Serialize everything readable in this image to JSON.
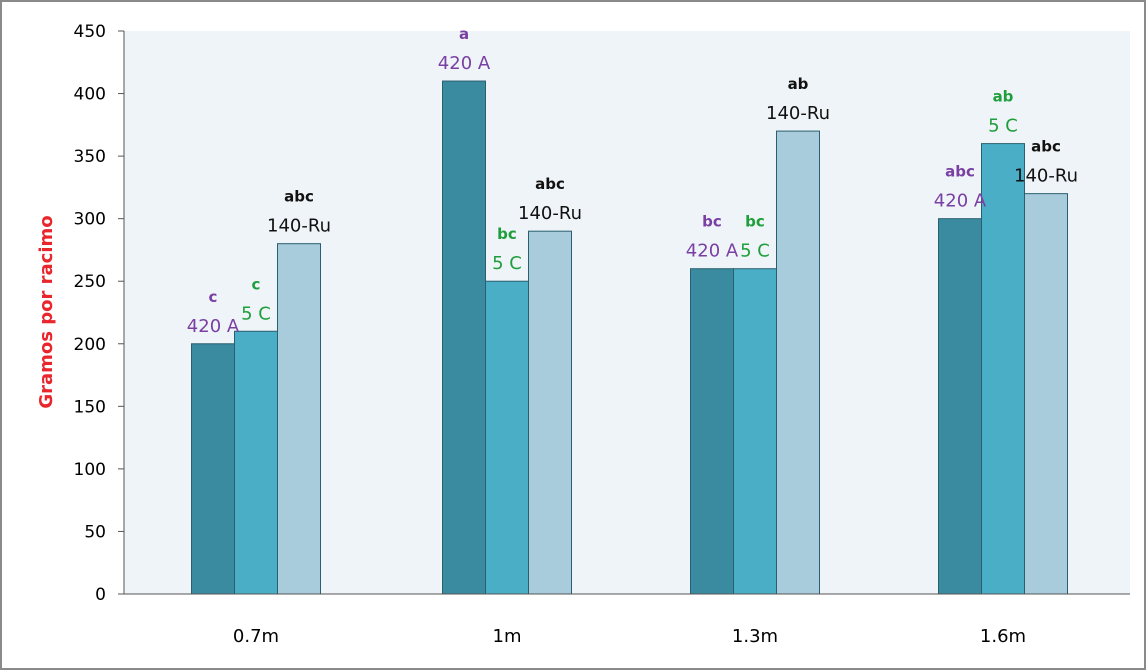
{
  "chart_data": {
    "type": "bar",
    "title": "",
    "xlabel": "",
    "ylabel": "Gramos por racimo",
    "ylim": [
      0,
      450
    ],
    "yticks": [
      0,
      50,
      100,
      150,
      200,
      250,
      300,
      350,
      400,
      450
    ],
    "grid": false,
    "legend": "none",
    "categories": [
      "0.7m",
      "1m",
      "1.3m",
      "1.6m"
    ],
    "series": [
      {
        "name": "420 A",
        "color": "#3a8ba0",
        "label_color": "#7a3fa3",
        "values": [
          200,
          410,
          260,
          300
        ],
        "letters": [
          "c",
          "a",
          "bc",
          "abc"
        ]
      },
      {
        "name": "5 C",
        "color": "#4aaec6",
        "label_color": "#1f9e3c",
        "values": [
          210,
          250,
          260,
          360
        ],
        "letters": [
          "c",
          "bc",
          "bc",
          "ab"
        ]
      },
      {
        "name": "140-Ru",
        "color": "#a8ccdb",
        "label_color": "#111111",
        "values": [
          280,
          290,
          370,
          320
        ],
        "letters": [
          "abc",
          "abc",
          "ab",
          "abc"
        ]
      }
    ]
  },
  "colors": {
    "plot_background": "#eef4f7",
    "frame": "#8a8a8a",
    "axis": "#555555",
    "bar_stroke": "#2a5f6f",
    "ylabel": "#e8262c"
  }
}
